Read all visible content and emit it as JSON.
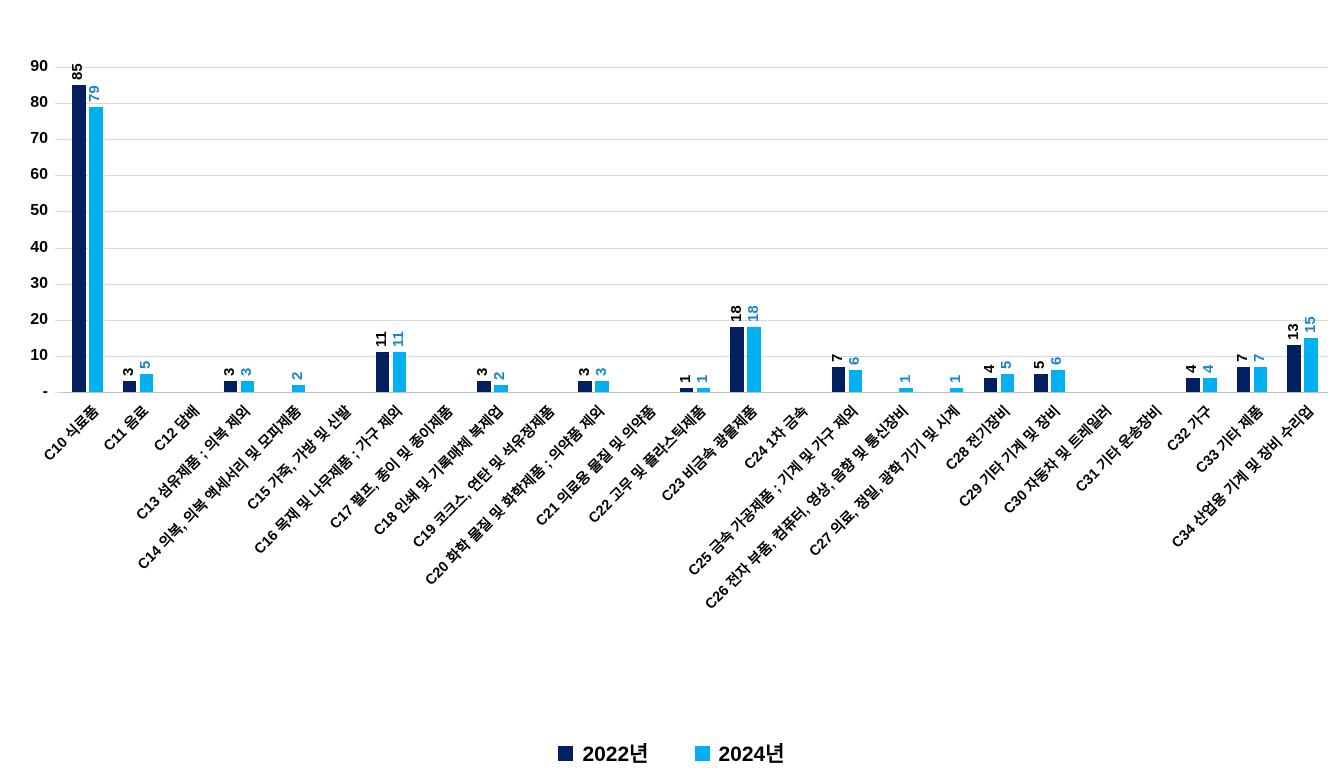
{
  "chart_data": {
    "type": "bar",
    "title": "",
    "xlabel": "",
    "ylabel": "",
    "ylim": [
      0,
      90
    ],
    "ytick_step": 10,
    "yticks_top_to_bottom": [
      "90",
      "80",
      "70",
      "60",
      "50",
      "40",
      "30",
      "20",
      "10",
      "-"
    ],
    "grid": true,
    "legend_position": "bottom",
    "categories": [
      "C10 식료품",
      "C11 음료",
      "C12 담배",
      "C13 섬유제품 ; 의복 제외",
      "C14 의복, 의복 액세서리 및 모피제품",
      "C15 가죽, 가방 및 신발",
      "C16 목재 및 나무제품 ; 가구 제외",
      "C17 펄프, 종이 및 종이제품",
      "C18 인쇄 및 기록매체 복제업",
      "C19 코크스, 연탄 및 석유정제품",
      "C20 화학 물질 및 화학제품 ; 의약품 제외",
      "C21 의료용 물질 및 의약품",
      "C22 고무 및 플라스틱제품",
      "C23 비금속 광물제품",
      "C24 1차 금속",
      "C25 금속 가공제품 ; 기계 및 가구 제외",
      "C26 전자 부품, 컴퓨터, 영상, 음향 및 통신장비",
      "C27 의료, 정밀, 광학 기기 및 시계",
      "C28 전기장비",
      "C29 기타 기계 및 장비",
      "C30 자동차 및 트레일러",
      "C31 기타 운송장비",
      "C32 가구",
      "C33 기타 제품",
      "C34 산업용 기계 및 장비 수리업"
    ],
    "series": [
      {
        "name": "2022년",
        "color": "#002060",
        "label_color": "#000000",
        "values": [
          85,
          3,
          null,
          3,
          null,
          null,
          11,
          null,
          3,
          null,
          3,
          null,
          1,
          18,
          null,
          7,
          null,
          null,
          4,
          5,
          null,
          null,
          4,
          7,
          13
        ]
      },
      {
        "name": "2024년",
        "color": "#00B0F0",
        "label_color": "#1886C8",
        "values": [
          79,
          5,
          null,
          3,
          2,
          null,
          11,
          null,
          2,
          null,
          3,
          null,
          1,
          18,
          null,
          6,
          1,
          1,
          5,
          6,
          null,
          null,
          4,
          7,
          15
        ]
      }
    ],
    "colors": {
      "gridline": "#D9D9D9",
      "axis_line": "#BFBFBF",
      "background": "#FFFFFF"
    }
  }
}
